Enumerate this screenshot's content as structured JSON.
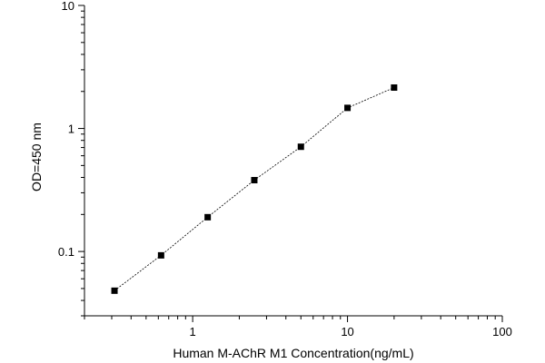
{
  "chart_data": {
    "type": "line",
    "title": "",
    "xlabel": "Human M-AChR M1 Concentration(ng/mL)",
    "ylabel": "OD=450 nm",
    "x_scale": "log",
    "y_scale": "log",
    "xlim": [
      0.2,
      100
    ],
    "ylim": [
      0.03,
      10
    ],
    "x_ticks": [
      1,
      10,
      100
    ],
    "x_tick_labels": [
      "1",
      "10",
      "100"
    ],
    "y_ticks": [
      0.1,
      1,
      10
    ],
    "y_tick_labels": [
      "0.1",
      "1",
      "10"
    ],
    "grid": false,
    "legend": "none",
    "series": [
      {
        "x": [
          0.3125,
          0.625,
          1.25,
          2.5,
          5,
          10,
          20
        ],
        "y": [
          0.048,
          0.093,
          0.19,
          0.38,
          0.71,
          1.47,
          2.15
        ],
        "marker": "square",
        "line_style": "dashed",
        "color": "#000000"
      }
    ]
  }
}
